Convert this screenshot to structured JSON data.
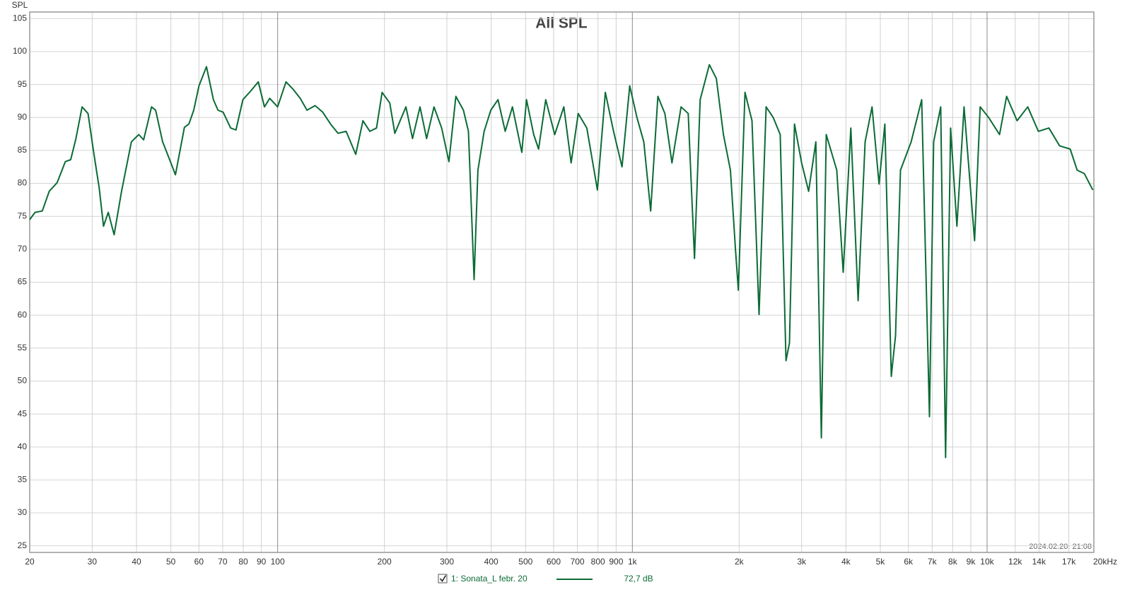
{
  "chart_data": {
    "type": "line",
    "title": "All SPL",
    "ylabel": "SPL",
    "timestamp": "2024.02.20. 21:08",
    "log_x": true,
    "grid": true,
    "xlim": [
      20,
      20000
    ],
    "ylim": [
      24,
      106
    ],
    "yticks": [
      25,
      30,
      35,
      40,
      45,
      50,
      55,
      60,
      65,
      70,
      75,
      80,
      85,
      90,
      95,
      100,
      105
    ],
    "xticks": [
      20,
      30,
      40,
      50,
      60,
      70,
      80,
      90,
      100,
      200,
      300,
      400,
      500,
      600,
      700,
      800,
      900,
      {
        "value": 1000,
        "label": "1k"
      },
      {
        "value": 2000,
        "label": "2k"
      },
      {
        "value": 3000,
        "label": "3k"
      },
      {
        "value": 4000,
        "label": "4k"
      },
      {
        "value": 5000,
        "label": "5k"
      },
      {
        "value": 6000,
        "label": "6k"
      },
      {
        "value": 7000,
        "label": "7k"
      },
      {
        "value": 8000,
        "label": "8k"
      },
      {
        "value": 9000,
        "label": "9k"
      },
      {
        "value": 10000,
        "label": "10k"
      },
      {
        "value": 12000,
        "label": "12k"
      },
      {
        "value": 14000,
        "label": "14k"
      },
      {
        "value": 17000,
        "label": "17k"
      },
      {
        "value": 20000,
        "label": "20kHz"
      }
    ],
    "legend_readout": "72,7 dB",
    "x": [
      20,
      20.7,
      21.7,
      22.7,
      23.9,
      25.2,
      26.1,
      27,
      28.1,
      29.2,
      30.3,
      31.4,
      32.3,
      33.3,
      34.6,
      36.3,
      38.7,
      40.6,
      41.9,
      44.1,
      45.3,
      47.4,
      49.6,
      51.5,
      54.6,
      56.2,
      58,
      60,
      63,
      65.9,
      67.9,
      70.2,
      73.7,
      76.3,
      79.8,
      83.9,
      88.2,
      91.8,
      95,
      100,
      105.6,
      110.5,
      115.8,
      121,
      127.5,
      134,
      141,
      148,
      156,
      166,
      174,
      182,
      190,
      197,
      207,
      214,
      230,
      240,
      252,
      263,
      276,
      290,
      304,
      318,
      334,
      345,
      358,
      367,
      382,
      399,
      418,
      438,
      459,
      488,
      503,
      527,
      544,
      570,
      604,
      641,
      672,
      704,
      744,
      797,
      839,
      885,
      935,
      983,
      1030,
      1077,
      1126,
      1180,
      1235,
      1293,
      1372,
      1437,
      1497,
      1553,
      1648,
      1725,
      1806,
      1890,
      1952,
      1990,
      2077,
      2174,
      2276,
      2383,
      2495,
      2611,
      2711,
      2773,
      2864,
      3000,
      3140,
      3290,
      3410,
      3520,
      3770,
      3930,
      4130,
      4330,
      4530,
      4740,
      4960,
      5150,
      5370,
      5520,
      5700,
      6110,
      6540,
      6880,
      7070,
      7400,
      7640,
      7890,
      8220,
      8610,
      9220,
      9560,
      10100,
      10840,
      11350,
      12150,
      13020,
      13950,
      14940,
      16010,
      17150,
      17950,
      18790,
      19860
    ],
    "series": [
      {
        "name": "1: Sonata_L febr. 20",
        "color": "#0b6b35",
        "values": [
          74.5,
          75.6,
          75.8,
          78.8,
          80.1,
          83.3,
          83.6,
          86.8,
          91.6,
          90.6,
          84.7,
          79.3,
          73.5,
          75.6,
          72.2,
          78.8,
          86.3,
          87.4,
          86.6,
          91.6,
          91.1,
          86.3,
          83.6,
          81.3,
          88.5,
          89,
          91.1,
          94.8,
          97.7,
          92.7,
          91.1,
          90.8,
          88.4,
          88.1,
          92.7,
          94,
          95.4,
          91.6,
          92.9,
          91.6,
          95.4,
          94.3,
          92.9,
          91.1,
          91.8,
          90.8,
          89,
          87.6,
          87.9,
          84.4,
          89.5,
          87.9,
          88.4,
          93.8,
          92.2,
          87.6,
          91.6,
          86.8,
          91.6,
          86.8,
          91.6,
          88.4,
          83.3,
          93.2,
          91.1,
          87.9,
          65.4,
          82,
          87.9,
          91.1,
          92.7,
          87.9,
          91.6,
          84.7,
          92.7,
          87.4,
          85.2,
          92.7,
          87.4,
          91.6,
          83.1,
          90.6,
          88.4,
          79,
          93.8,
          87.9,
          82.5,
          94.8,
          90,
          86.3,
          75.8,
          93.2,
          90.6,
          83.1,
          91.6,
          90.6,
          68.6,
          92.7,
          98,
          95.9,
          87.4,
          82,
          70.2,
          63.8,
          93.8,
          89.5,
          60.1,
          91.6,
          90,
          87.4,
          53.1,
          55.8,
          89,
          83.1,
          78.8,
          86.3,
          41.4,
          87.4,
          82,
          66.5,
          88.4,
          62.2,
          86.3,
          91.6,
          79.9,
          89,
          50.7,
          56.9,
          82,
          86.3,
          92.7,
          44.6,
          86.3,
          91.6,
          38.4,
          88.4,
          73.5,
          91.6,
          71.3,
          91.6,
          90,
          87.4,
          93.2,
          89.5,
          91.6,
          87.9,
          88.4,
          85.7,
          85.2,
          82,
          81.5,
          79
        ]
      }
    ]
  }
}
